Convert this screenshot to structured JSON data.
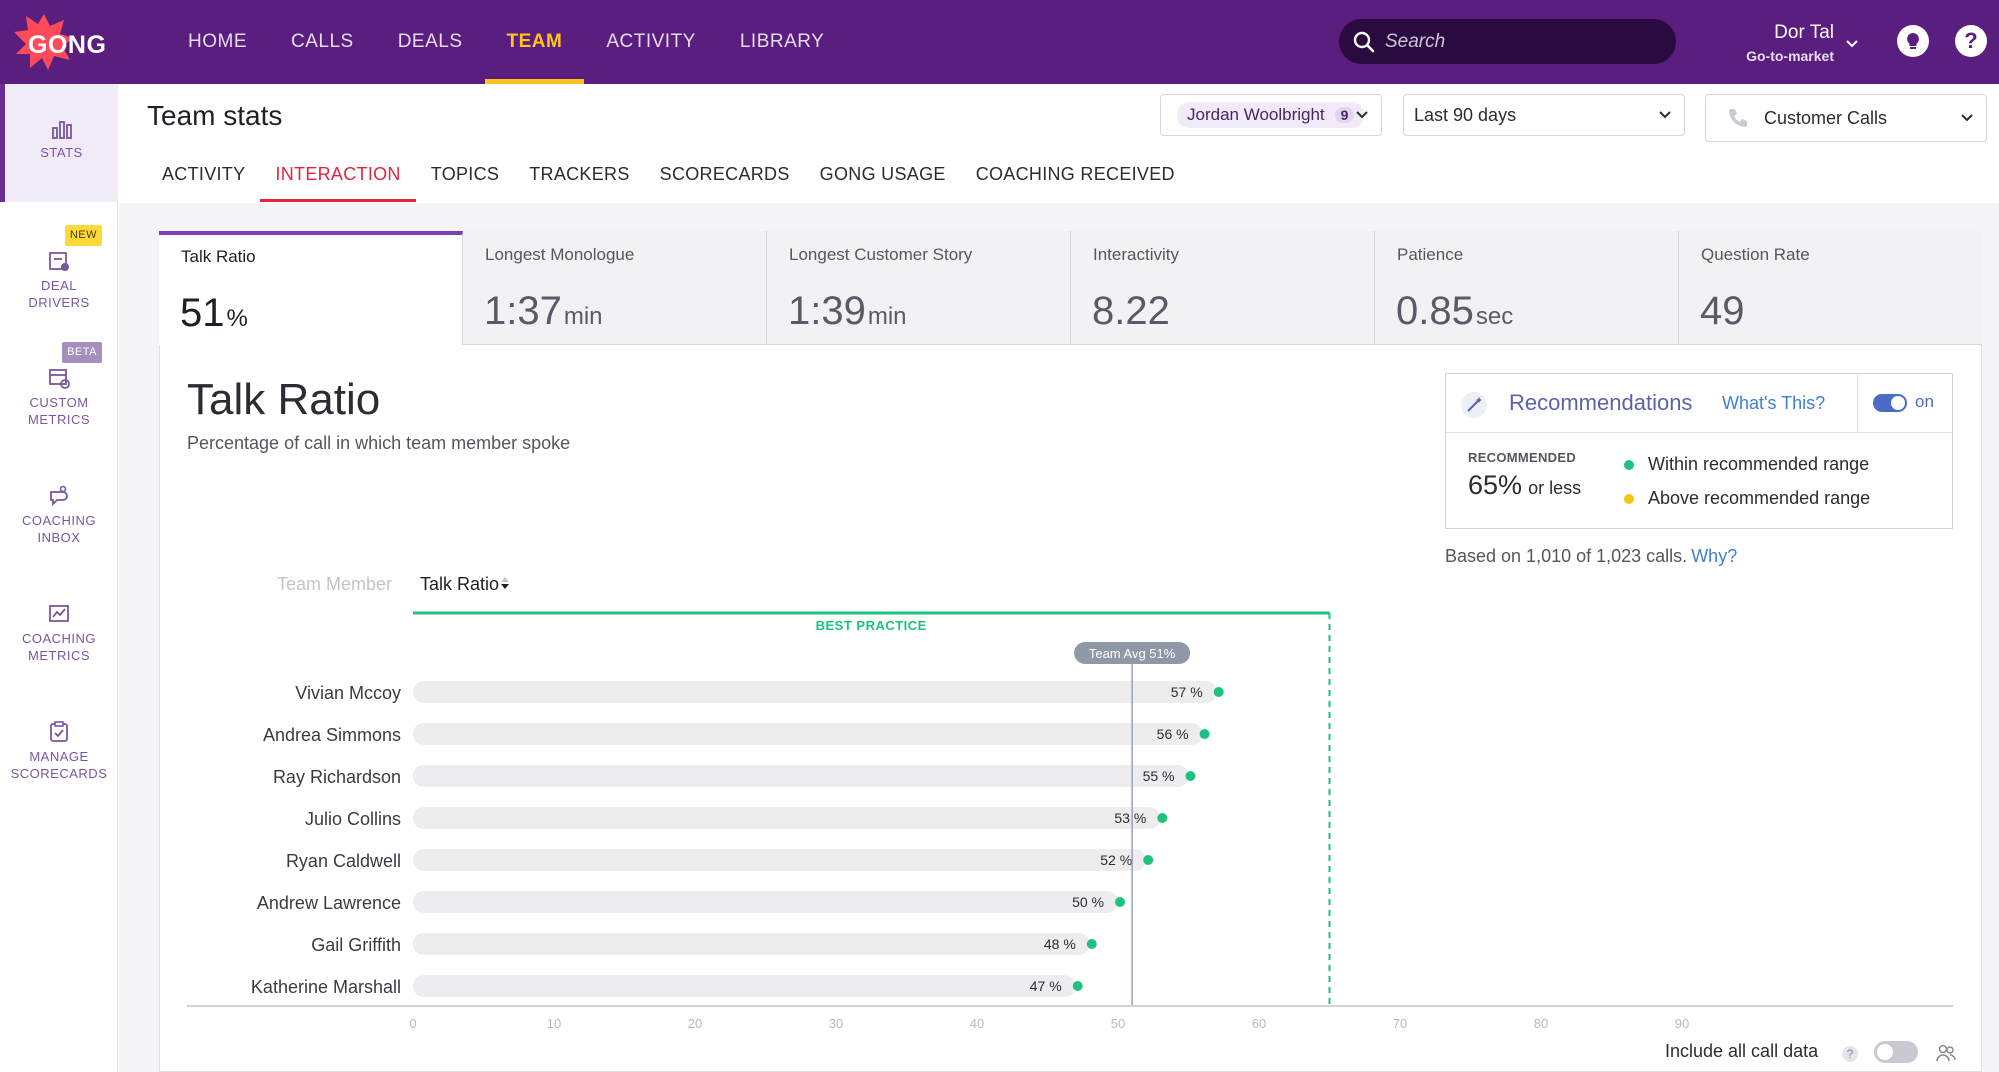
{
  "app": {
    "logo_text": "GONG"
  },
  "nav": {
    "items": [
      {
        "label": "HOME"
      },
      {
        "label": "CALLS"
      },
      {
        "label": "DEALS"
      },
      {
        "label": "TEAM"
      },
      {
        "label": "ACTIVITY"
      },
      {
        "label": "LIBRARY"
      }
    ],
    "active": "TEAM"
  },
  "search": {
    "placeholder": "Search"
  },
  "user": {
    "name": "Dor Tal",
    "role": "Go-to-market"
  },
  "sidebar": {
    "items": [
      {
        "label_line1": "STATS",
        "label_line2": "",
        "icon": "bar-chart-icon"
      },
      {
        "label_line1": "DEAL",
        "label_line2": "DRIVERS",
        "icon": "deal-drivers-icon",
        "badge": "NEW"
      },
      {
        "label_line1": "CUSTOM",
        "label_line2": "METRICS",
        "icon": "custom-metrics-icon",
        "badge": "BETA"
      },
      {
        "label_line1": "COACHING",
        "label_line2": "INBOX",
        "icon": "coaching-inbox-icon"
      },
      {
        "label_line1": "COACHING",
        "label_line2": "METRICS",
        "icon": "coaching-metrics-icon"
      },
      {
        "label_line1": "MANAGE",
        "label_line2": "SCORECARDS",
        "icon": "scorecards-icon"
      }
    ]
  },
  "page": {
    "title": "Team stats"
  },
  "filters": {
    "member": {
      "name": "Jordan Woolbright",
      "count": "9"
    },
    "period": "Last 90 days",
    "call_type": "Customer Calls"
  },
  "subtabs": {
    "items": [
      {
        "label": "ACTIVITY"
      },
      {
        "label": "INTERACTION"
      },
      {
        "label": "TOPICS"
      },
      {
        "label": "TRACKERS"
      },
      {
        "label": "SCORECARDS"
      },
      {
        "label": "GONG USAGE"
      },
      {
        "label": "COACHING RECEIVED"
      }
    ],
    "active": "INTERACTION"
  },
  "metrics": [
    {
      "label": "Talk Ratio",
      "value": "51",
      "unit": "%"
    },
    {
      "label": "Longest Monologue",
      "value": "1:37",
      "unit": "min"
    },
    {
      "label": "Longest Customer Story",
      "value": "1:39",
      "unit": "min"
    },
    {
      "label": "Interactivity",
      "value": "8.22",
      "unit": ""
    },
    {
      "label": "Patience",
      "value": "0.85",
      "unit": "sec"
    },
    {
      "label": "Question Rate",
      "value": "49",
      "unit": ""
    }
  ],
  "chart_header": {
    "title": "Talk Ratio",
    "subtitle": "Percentage of call in which team member spoke",
    "col_member": "Team Member",
    "col_ratio": "Talk Ratio"
  },
  "recommendations": {
    "title": "Recommendations",
    "whats_this": "What's This?",
    "toggle_label": "on",
    "recommended_label": "RECOMMENDED",
    "recommended_value": "65",
    "recommended_pct": "%",
    "recommended_suffix": "or less",
    "legend_within": "Within recommended range",
    "legend_above": "Above recommended range",
    "color_within": "#1ec27e",
    "color_above": "#f5c518"
  },
  "based_on": {
    "text": "Based on 1,010 of 1,023 calls.",
    "link": "Why?"
  },
  "chart_data": {
    "type": "bar",
    "categories": [
      "Vivian Mccoy",
      "Andrea Simmons",
      "Ray Richardson",
      "Julio Collins",
      "Ryan Caldwell",
      "Andrew Lawrence",
      "Gail Griffith",
      "Katherine Marshall"
    ],
    "values": [
      57,
      56,
      55,
      53,
      52,
      50,
      48,
      47
    ],
    "value_suffix": " %",
    "xlim": [
      0,
      100
    ],
    "xticks": [
      0,
      10,
      20,
      30,
      40,
      50,
      60,
      70,
      80,
      90
    ],
    "team_avg": 51,
    "team_avg_label": "Team Avg 51%",
    "best_practice_max": 65,
    "best_practice_label": "BEST PRACTICE",
    "dot_color": "#1ec27e",
    "best_practice_color": "#1ec27e"
  },
  "footer": {
    "include_all_label": "Include all call data"
  }
}
